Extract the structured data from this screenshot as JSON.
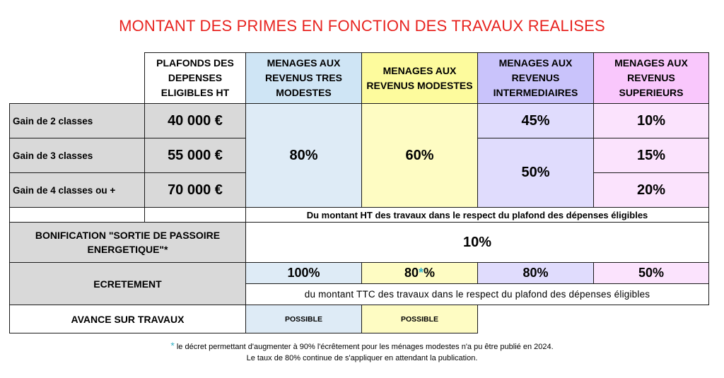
{
  "title": "MONTANT DES PRIMES EN FONCTION DES TRAVAUX REALISES",
  "headers": {
    "plafonds": "PLAFONDS DES DEPENSES ELIGIBLES HT",
    "tres_modestes": "MENAGES AUX REVENUS TRES MODESTES",
    "modestes": "MENAGES AUX REVENUS MODESTES",
    "intermediaires": "MENAGES AUX REVENUS INTERMEDIAIRES",
    "superieurs": "MENAGES AUX REVENUS SUPERIEURS"
  },
  "rows": [
    {
      "label": "Gain de 2 classes",
      "plafond": "40 000 €"
    },
    {
      "label": "Gain de 3 classes",
      "plafond": "55 000 €"
    },
    {
      "label": "Gain de 4 classes ou +",
      "plafond": "70 000 €"
    }
  ],
  "rates": {
    "tres_modestes": "80%",
    "modestes": "60%",
    "intermediaires_2": "45%",
    "intermediaires_34": "50%",
    "superieurs_2": "10%",
    "superieurs_3": "15%",
    "superieurs_4": "20%"
  },
  "note_ht": "Du montant HT des travaux dans le respect du plafond des dépenses éligibles",
  "bonification": {
    "label": "BONIFICATION \"SORTIE DE PASSOIRE ENERGETIQUE\"*",
    "value": "10%"
  },
  "ecretement": {
    "label": "ECRETEMENT",
    "tres_modestes": "100%",
    "modestes_prefix": "80",
    "modestes_asterisk": "*",
    "modestes_suffix": "%",
    "intermediaires": "80%",
    "superieurs": "50%",
    "note": "du montant TTC des travaux dans le respect du plafond des dépenses éligibles"
  },
  "avance": {
    "label": "AVANCE SUR TRAVAUX",
    "tres_modestes": "POSSIBLE",
    "modestes": "POSSIBLE"
  },
  "footnote": {
    "asterisk": "*",
    "line1": " le décret permettant d'augmenter à 90% l'écrêtement pour les ménages modestes n'a pu être publié en 2024.",
    "line2": "Le taux de 80% continue de s'appliquer en attendant la publication."
  },
  "colors": {
    "title": "#e8231f",
    "tres_modestes": "#deebf6",
    "modestes": "#fefcc3",
    "intermediaires": "#e0dcfd",
    "superieurs": "#fbe3fd",
    "label_gray": "#d9d9d9",
    "asterisk": "#36b3c6"
  }
}
